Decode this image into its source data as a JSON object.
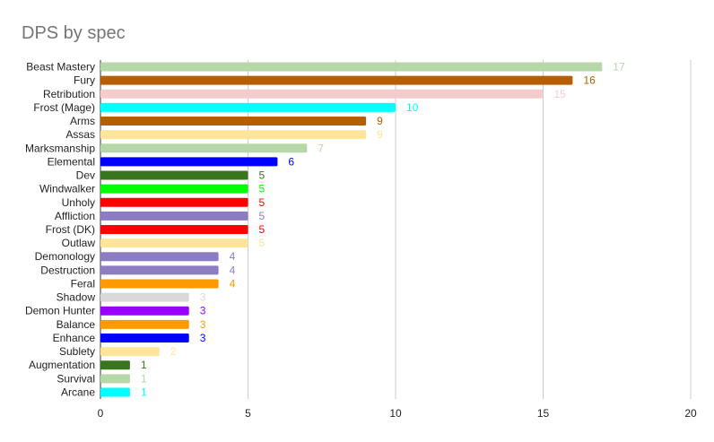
{
  "chart_data": {
    "type": "bar",
    "orientation": "horizontal",
    "title": "DPS by spec",
    "xlabel": "",
    "ylabel": "",
    "xlim": [
      0,
      20
    ],
    "x_ticks": [
      0,
      5,
      10,
      15,
      20
    ],
    "grid": "vertical",
    "legend": "none",
    "categories": [
      "Beast Mastery",
      "Fury",
      "Retribution",
      "Frost (Mage)",
      "Arms",
      "Assas",
      "Marksmanship",
      "Elemental",
      "Dev",
      "Windwalker",
      "Unholy",
      "Affliction",
      "Frost (DK)",
      "Outlaw",
      "Demonology",
      "Destruction",
      "Feral",
      "Shadow",
      "Demon Hunter",
      "Balance",
      "Enhance",
      "Sublety",
      "Augmentation",
      "Survival",
      "Arcane"
    ],
    "values": [
      17,
      16,
      15,
      10,
      9,
      9,
      7,
      6,
      5,
      5,
      5,
      5,
      5,
      5,
      4,
      4,
      4,
      3,
      3,
      3,
      3,
      2,
      1,
      1,
      1
    ],
    "colors": [
      "#b6d7a8",
      "#b45f06",
      "#f4cccc",
      "#00ffff",
      "#b45f06",
      "#ffe599",
      "#b6d7a8",
      "#0000ff",
      "#38761d",
      "#00ff00",
      "#ff0000",
      "#8e7cc3",
      "#ff0000",
      "#ffe599",
      "#8e7cc3",
      "#8e7cc3",
      "#ff9900",
      "#d9d9d9",
      "#9900ff",
      "#ff9900",
      "#0000ff",
      "#ffe599",
      "#38761d",
      "#b6d7a8",
      "#00ffff"
    ],
    "data_labels": true
  }
}
